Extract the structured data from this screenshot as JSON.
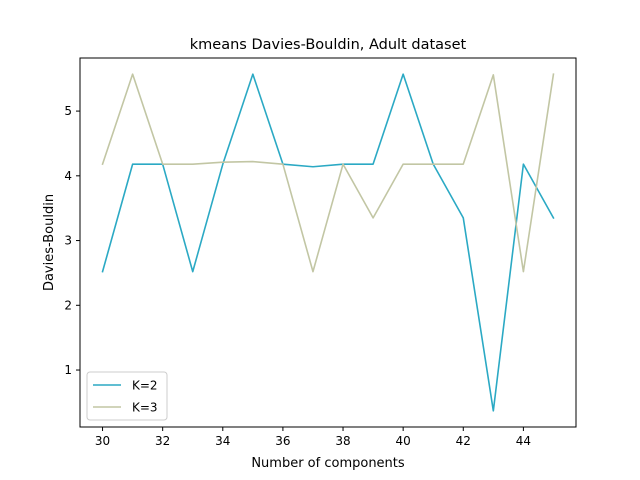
{
  "chart_data": {
    "type": "line",
    "title": "kmeans Davies-Bouldin, Adult dataset",
    "xlabel": "Number of components",
    "ylabel": "Davies-Bouldin",
    "xlim": [
      29.25,
      45.75
    ],
    "ylim": [
      0.12,
      5.82
    ],
    "xticks": [
      30,
      32,
      34,
      36,
      38,
      40,
      42,
      44
    ],
    "yticks": [
      1,
      2,
      3,
      4,
      5
    ],
    "grid": false,
    "legend_position": "lower-left",
    "x": [
      30,
      31,
      32,
      33,
      34,
      35,
      36,
      37,
      38,
      39,
      40,
      41,
      42,
      43,
      44,
      45
    ],
    "series": [
      {
        "name": "K=2",
        "color": "#2ba9c4",
        "values": [
          2.52,
          4.18,
          4.18,
          2.52,
          4.18,
          5.57,
          4.18,
          4.14,
          4.18,
          4.18,
          5.57,
          4.18,
          3.35,
          0.37,
          4.18,
          3.35
        ]
      },
      {
        "name": "K=3",
        "color": "#c2c6a4",
        "values": [
          4.18,
          5.57,
          4.18,
          4.18,
          4.21,
          4.22,
          4.18,
          2.52,
          4.18,
          3.35,
          4.18,
          4.18,
          4.18,
          5.56,
          2.52,
          5.57
        ]
      }
    ]
  }
}
